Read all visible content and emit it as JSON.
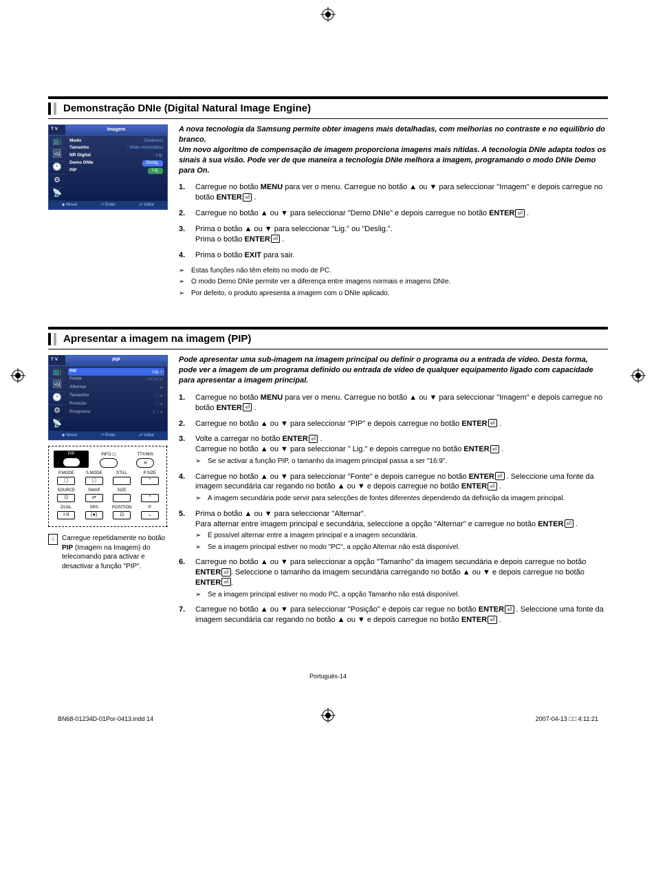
{
  "page_number_label": "Português-14",
  "doc_footer_left": "BN68-01234D-01Por-0413.indd   14",
  "doc_footer_right": "2007-04-13   □□ 4:11:21",
  "section1": {
    "title": "Demonstração DNIe (Digital Natural Image Engine)",
    "intro": "A nova tecnologia da Samsung permite obter imagens mais detalhadas, com melhorias no contraste e no equilíbrio do branco.\nUm novo algoritmo de compensação de imagem proporciona imagens mais nítidas. A tecnologia DNIe adapta todos os sinais à sua visão. Pode ver de que maneira a tecnologia DNIe melhora a imagem, programando o modo DNIe Demo para On.",
    "tv_menu": {
      "tv_label": "T V",
      "header": "Imagem",
      "rows": [
        {
          "label": "Modo",
          "value": ": Dinâmico"
        },
        {
          "label": "Tamanho",
          "value": ": Wide Automático"
        },
        {
          "label": "NR Digital",
          "value": ": Lig."
        },
        {
          "label": "Demo DNIe",
          "value": "Deslig.",
          "pill": true
        },
        {
          "label": "PIP",
          "value": "Lig.",
          "pill_green": true
        }
      ],
      "footer": [
        "◆ Mover",
        "⏎ Enter",
        "⮐ Voltar"
      ]
    },
    "steps": [
      "Carregue no botão <b>MENU</b> para ver o menu. Carregue no botão ▲ ou ▼ para seleccionar \"Imagem\" e depois carregue no botão <b>ENTER</b><span class='enter-icon'></span> .",
      "Carregue no botão ▲ ou ▼ para seleccionar \"Demo DNIe\" e depois carregue no botão <b>ENTER</b><span class='enter-icon'></span> .",
      "Prima o botão ▲ ou ▼ para seleccionar \"Lig.\" ou \"Deslig.\".<br>Prima o botão <b>ENTER</b><span class='enter-icon'></span> .",
      "Prima o botão <b>EXIT</b> para sair."
    ],
    "notes": [
      "Estas funções não têm efeito no modo de PC.",
      "O modo Demo DNIe permite ver a diferença entre imagens normais e imagens DNIe.",
      "Por defeito, o produto apresenta a imagem com o DNIe aplicado."
    ]
  },
  "section2": {
    "title": "Apresentar a imagem na imagem (PIP)",
    "intro": "Pode apresentar uma sub-imagem na imagem principal ou definir o programa ou a entrada de vídeo. Desta forma, pode ver a imagem de um programa definido ou entrada de vídeo de qualquer equipamento ligado com capacidade para apresentar a imagem principal.",
    "tv_menu": {
      "tv_label": "T V",
      "header": "PIP",
      "rows": [
        {
          "label": "PIP",
          "value": "Lig.",
          "active": true,
          "arrow": true
        },
        {
          "label": "Fonte",
          "value": ": HDMI",
          "dimmed": true,
          "arrow": true
        },
        {
          "label": "Alternar",
          "value": "",
          "dimmed": true,
          "arrow": true
        },
        {
          "label": "Tamanho",
          "value": ": ▢",
          "dimmed": true,
          "arrow": true
        },
        {
          "label": "Posição",
          "value": ": ▢",
          "dimmed": true,
          "arrow": true
        },
        {
          "label": "Programa",
          "value": ": P 1",
          "dimmed": true,
          "arrow": true
        }
      ],
      "footer": [
        "◆ Mover",
        "⏎ Enter",
        "⮐ Voltar"
      ]
    },
    "remote": {
      "rows": [
        [
          {
            "label": "PIP",
            "shape": "oval",
            "highlight": true,
            "sym": "⊞"
          },
          {
            "label": "INFO ▢",
            "shape": "oval",
            "sym": ""
          },
          {
            "label": "TTX/MIX",
            "shape": "oval",
            "sym": "≡"
          }
        ],
        [
          {
            "label": "P.MODE",
            "shape": "rect",
            "sym": "▢"
          },
          {
            "label": "S.MODE",
            "shape": "rect",
            "sym": "▢"
          },
          {
            "label": "STILL",
            "shape": "rect",
            "sym": ""
          },
          {
            "label": "P.SIZE",
            "shape": "rect",
            "sym": "⌃"
          }
        ],
        [
          {
            "label": "SOURCE",
            "shape": "rect",
            "sym": "⊡"
          },
          {
            "label": "SWAP",
            "shape": "rect",
            "sym": "⇄"
          },
          {
            "label": "SIZE",
            "shape": "rect",
            "sym": ""
          },
          {
            "label": "",
            "shape": "rect",
            "sym": "⌃"
          }
        ],
        [
          {
            "label": "DUAL",
            "shape": "rect",
            "sym": "I-II"
          },
          {
            "label": "SRS",
            "shape": "rect",
            "sym": "(●)"
          },
          {
            "label": "POSITION",
            "shape": "rect",
            "sym": "⊡"
          },
          {
            "label": "P",
            "shape": "rect",
            "sym": "⌄"
          }
        ]
      ]
    },
    "note_box": "Carregue repetidamente no botão <b>PIP</b> (Imagem na Imagem) do telecomando para activar e desactivar a função \"PIP\".",
    "steps": [
      {
        "text": "Carregue no botão <b>MENU</b> para ver o menu. Carregue no botão ▲ ou ▼ para seleccionar \"Imagem\" e depois carregue no botão <b>ENTER</b><span class='enter-icon'></span> ."
      },
      {
        "text": "Carregue no botão ▲ ou ▼ para seleccionar \"PIP\" e depois carregue no botão <b>ENTER</b><span class='enter-icon'></span> ."
      },
      {
        "text": "Volte a carregar no botão <b>ENTER</b><span class='enter-icon'></span> .<br>Carregue no botão ▲ ou ▼ para seleccionar \" Lig.\" e depois carregue no botão <b>ENTER</b><span class='enter-icon'></span> .",
        "notes": [
          "Se se activar a função PIP, o tamanho da imagem principal passa a ser \"16:9\"."
        ]
      },
      {
        "text": "Carregue no botão ▲ ou ▼ para seleccionar \"Fonte\" e depois carregue no botão <b>ENTER</b><span class='enter-icon'></span> . Seleccione uma fonte da imagem secundária car regando no botão ▲ ou ▼ e depois carregue no botão <b>ENTER</b><span class='enter-icon'></span> .",
        "notes": [
          "A imagem secundária pode servir para selecções de fontes diferentes dependendo da definição da imagem principal."
        ]
      },
      {
        "text": "Prima o botão ▲ ou ▼ para seleccionar \"Alternar\".<br>Para alternar entre imagem principal e secundária, seleccione a opção \"Alternar\" e carregue no botão <b>ENTER</b><span class='enter-icon'></span> .",
        "notes": [
          "É possível alternar entre a imagem principal e a imagem secundária.",
          "Se a imagem principal estiver no modo \"PC\", a opção Alternar não está disponível."
        ]
      },
      {
        "text": "Carregue no botão ▲ ou ▼ para seleccionar a opção \"Tamanho\" da imagem secundária e depois carregue no botão <b>ENTER</b><span class='enter-icon'></span>. Seleccione o tamanho da imagem secundária carregando no botão ▲ ou ▼ e depois carregue no botão <b>ENTER</b><span class='enter-icon'></span>.",
        "notes": [
          "Se a imagem principal estiver no modo PC, a opção Tamanho não está disponível."
        ]
      },
      {
        "text": "Carregue no botão ▲ ou ▼ para seleccionar \"Posição\" e depois car regue no botão <b>ENTER</b><span class='enter-icon'></span> . Seleccione uma fonte da imagem secundária car regando no botão ▲ ou ▼ e depois carregue no botão <b>ENTER</b><span class='enter-icon'></span> ."
      }
    ]
  }
}
